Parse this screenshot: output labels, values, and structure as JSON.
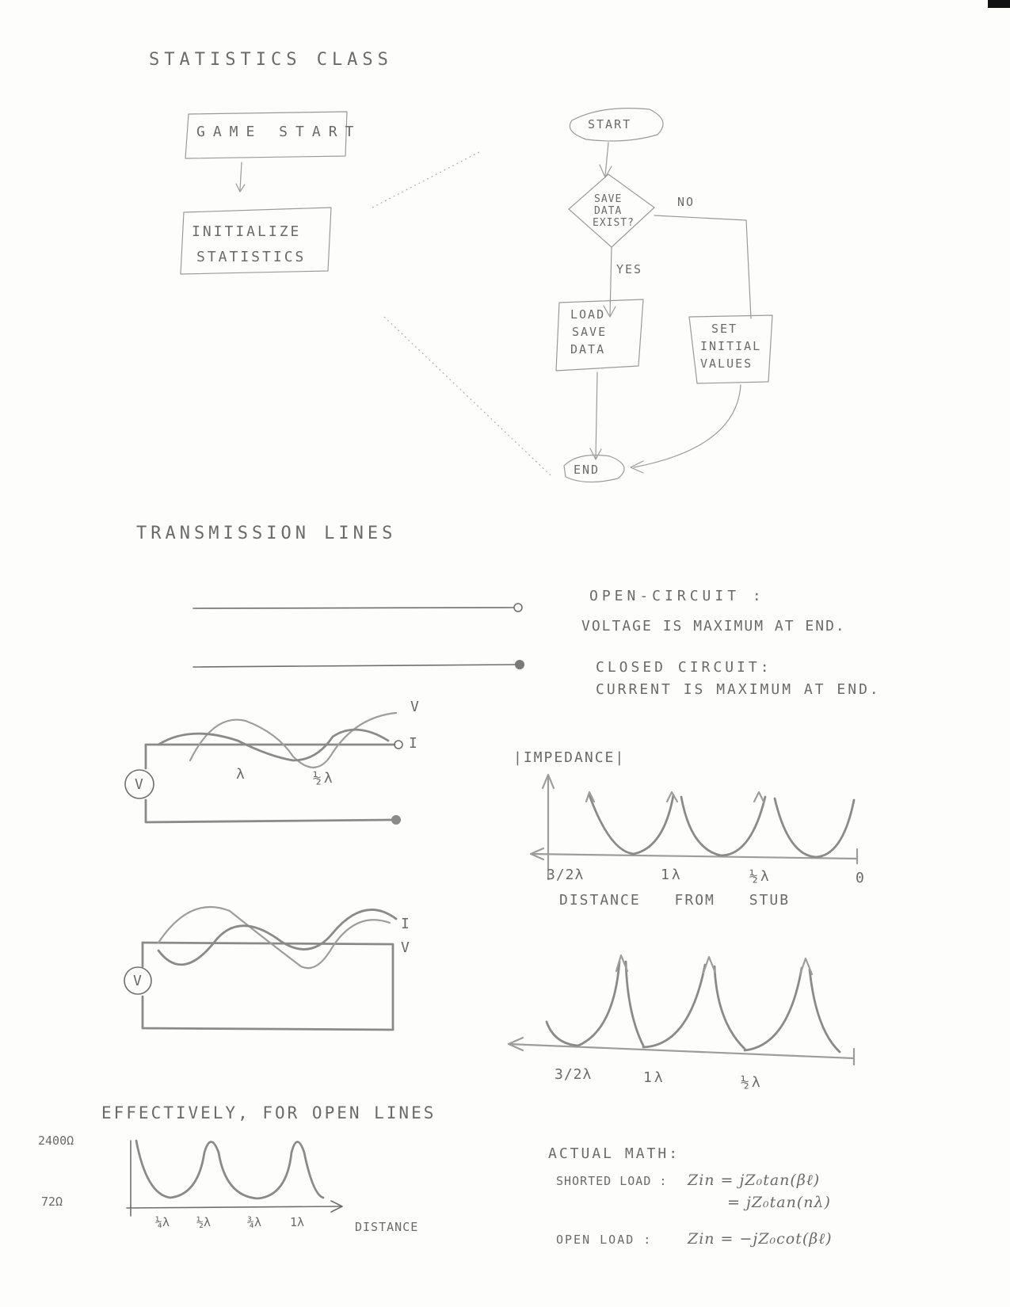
{
  "statistics": {
    "heading": "STATISTICS CLASS",
    "game_start": "GAME START",
    "initialize_1": "INITIALIZE",
    "initialize_2": "STATISTICS"
  },
  "flowchart": {
    "start": "START",
    "decision_1": "SAVE",
    "decision_2": "DATA",
    "decision_3": "EXIST?",
    "no": "NO",
    "yes": "YES",
    "load_1": "LOAD",
    "load_2": "SAVE",
    "load_3": "DATA",
    "set_1": "SET",
    "set_2": "INITIAL",
    "set_3": "VALUES",
    "end": "END"
  },
  "transmission": {
    "heading": "TRANSMISSION LINES",
    "open_title": "OPEN-CIRCUIT :",
    "open_desc": "VOLTAGE IS MAXIMUM AT END.",
    "closed_title": "CLOSED CIRCUIT:",
    "closed_desc": "CURRENT IS MAXIMUM AT END.",
    "wave1_v": "V",
    "wave1_i": "I",
    "wave1_source": "V",
    "wave1_lambda": "λ",
    "wave1_half_lambda": "½λ",
    "wave2_i": "I",
    "wave2_v": "V",
    "wave2_source": "V"
  },
  "impedance": {
    "ylabel": "|IMPEDANCE|",
    "tick_1": "3/2λ",
    "tick_2": "1λ",
    "tick_3": "½λ",
    "tick_4": "0",
    "xlabel": "DISTANCE FROM STUB",
    "b_tick_1": "3/2λ",
    "b_tick_2": "1λ",
    "b_tick_3": "½λ"
  },
  "effective": {
    "heading": "EFFECTIVELY, FOR OPEN LINES",
    "y_high": "2400Ω",
    "y_low": "72Ω",
    "tick_1": "¼λ",
    "tick_2": "½λ",
    "tick_3": "¾λ",
    "tick_4": "1λ",
    "xlabel": "DISTANCE"
  },
  "math": {
    "heading": "ACTUAL MATH:",
    "shorted_label": "SHORTED LOAD :",
    "shorted_eq1": "Zin = jZ₀tan(βℓ)",
    "shorted_eq2": "= jZ₀tan(nλ)",
    "open_label": "OPEN LOAD :",
    "open_eq": "Zin = −jZ₀cot(βℓ)"
  }
}
